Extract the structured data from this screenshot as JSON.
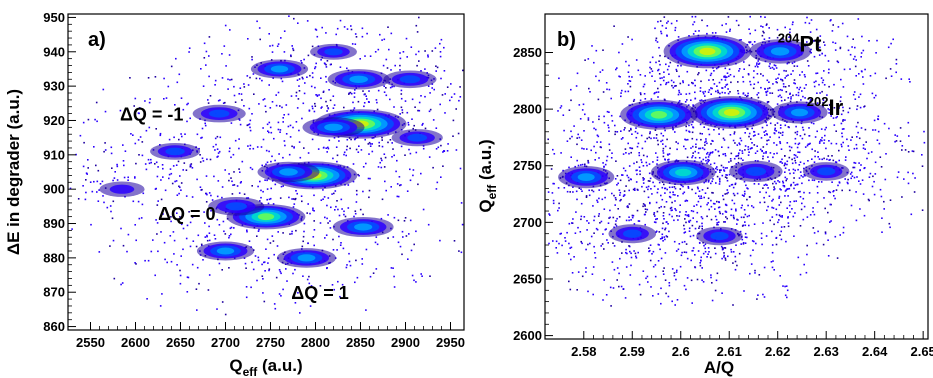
{
  "chart_data": [
    {
      "type": "heatmap",
      "panel_label": "a)",
      "xlabel": {
        "main": "Q",
        "sub": "eff",
        "rest": " (a.u.)"
      },
      "ylabel": {
        "main": "ΔE in degrader (a.u.)"
      },
      "xlim": [
        2525,
        2965
      ],
      "ylim": [
        859,
        951
      ],
      "xticks": [
        2550,
        2600,
        2650,
        2700,
        2750,
        2800,
        2850,
        2900,
        2950
      ],
      "yticks": [
        860,
        870,
        880,
        890,
        900,
        910,
        920,
        930,
        940,
        950
      ],
      "grid": false,
      "annotations": [
        {
          "text": "ΔQ = -1",
          "x": 2618,
          "y": 920
        },
        {
          "text": "ΔQ = 0",
          "x": 2657,
          "y": 891
        },
        {
          "text": "ΔQ = 1",
          "x": 2805,
          "y": 868
        }
      ],
      "clusters": [
        {
          "x": 2850,
          "y": 919,
          "intensity": 1.0
        },
        {
          "x": 2798,
          "y": 904,
          "intensity": 0.92
        },
        {
          "x": 2745,
          "y": 892,
          "intensity": 0.78
        },
        {
          "x": 2848,
          "y": 932,
          "intensity": 0.5
        },
        {
          "x": 2760,
          "y": 935,
          "intensity": 0.42
        },
        {
          "x": 2905,
          "y": 932,
          "intensity": 0.35
        },
        {
          "x": 2913,
          "y": 915,
          "intensity": 0.32
        },
        {
          "x": 2853,
          "y": 889,
          "intensity": 0.48
        },
        {
          "x": 2790,
          "y": 880,
          "intensity": 0.45
        },
        {
          "x": 2700,
          "y": 882,
          "intensity": 0.42
        },
        {
          "x": 2693,
          "y": 922,
          "intensity": 0.35
        },
        {
          "x": 2644,
          "y": 911,
          "intensity": 0.3
        },
        {
          "x": 2585,
          "y": 900,
          "intensity": 0.22
        },
        {
          "x": 2820,
          "y": 918,
          "intensity": 0.5
        },
        {
          "x": 2770,
          "y": 905,
          "intensity": 0.5
        },
        {
          "x": 2712,
          "y": 895,
          "intensity": 0.4
        },
        {
          "x": 2820,
          "y": 940,
          "intensity": 0.25
        }
      ]
    },
    {
      "type": "heatmap",
      "panel_label": "b)",
      "xlabel": {
        "main": "A/Q"
      },
      "ylabel": {
        "main": "Q",
        "sub": "eff",
        "rest": " (a.u.)"
      },
      "xlim": [
        2.572,
        2.651
      ],
      "ylim": [
        2597,
        2884
      ],
      "xticks": [
        2.58,
        2.59,
        2.6,
        2.61,
        2.62,
        2.63,
        2.64,
        2.65
      ],
      "xtick_labels": [
        "2.58",
        "2.59",
        "2.6",
        "2.61",
        "2.62",
        "2.63",
        "2.64",
        "2.65"
      ],
      "yticks": [
        2600,
        2650,
        2700,
        2750,
        2800,
        2850
      ],
      "grid": false,
      "annotations": [
        {
          "text": "Pt",
          "sup": "204",
          "x": 2.62,
          "y": 2851
        },
        {
          "text": "Ir",
          "sup": "202",
          "x": 2.626,
          "y": 2795
        }
      ],
      "clusters": [
        {
          "x": 2.6055,
          "y": 2851,
          "intensity": 1.0
        },
        {
          "x": 2.6105,
          "y": 2797,
          "intensity": 0.95
        },
        {
          "x": 2.5955,
          "y": 2795,
          "intensity": 0.82
        },
        {
          "x": 2.6005,
          "y": 2744,
          "intensity": 0.6
        },
        {
          "x": 2.5805,
          "y": 2740,
          "intensity": 0.45
        },
        {
          "x": 2.6205,
          "y": 2851,
          "intensity": 0.55
        },
        {
          "x": 2.6245,
          "y": 2797,
          "intensity": 0.45
        },
        {
          "x": 2.6155,
          "y": 2745,
          "intensity": 0.4
        },
        {
          "x": 2.59,
          "y": 2690,
          "intensity": 0.3
        },
        {
          "x": 2.608,
          "y": 2688,
          "intensity": 0.28
        },
        {
          "x": 2.63,
          "y": 2745,
          "intensity": 0.28
        }
      ]
    }
  ],
  "colors": {
    "scale": [
      "#1e00a0",
      "#2a00ff",
      "#0050ff",
      "#00a6ff",
      "#00e0c8",
      "#6eff50",
      "#dcf000"
    ],
    "axis": "#000000"
  }
}
